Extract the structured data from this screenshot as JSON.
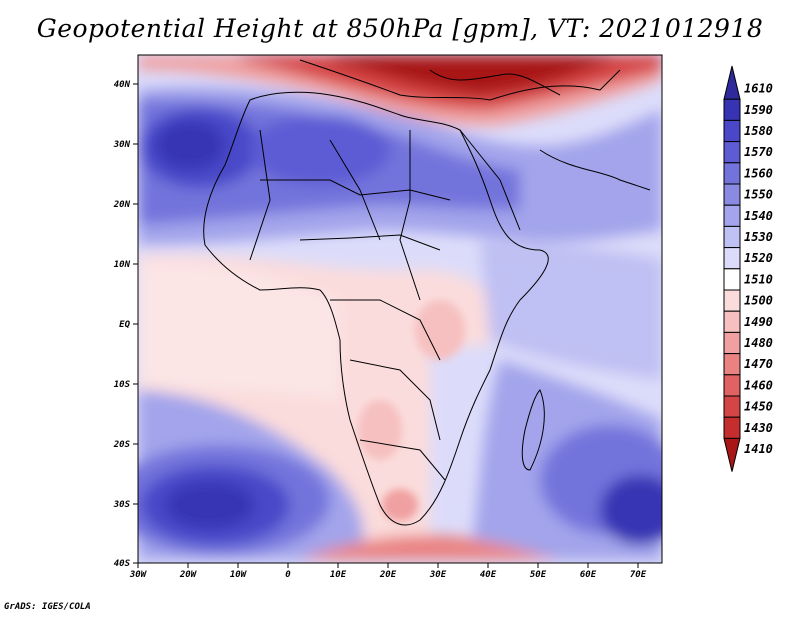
{
  "title": "Geopotential Height at 850hPa [gpm], VT: 2021012918",
  "footer": "GrADS: IGES/COLA",
  "map": {
    "lon_labels": [
      "30W",
      "20W",
      "10W",
      "0",
      "10E",
      "20E",
      "30E",
      "40E",
      "50E",
      "60E",
      "70E"
    ],
    "lat_labels": [
      "40N",
      "30N",
      "20N",
      "10N",
      "EQ",
      "10S",
      "20S",
      "30S",
      "40S"
    ]
  },
  "colorbar": {
    "labels": [
      "1610",
      "1590",
      "1580",
      "1570",
      "1560",
      "1550",
      "1540",
      "1530",
      "1520",
      "1510",
      "1500",
      "1490",
      "1480",
      "1470",
      "1460",
      "1450",
      "1430",
      "1410"
    ],
    "colors_top_to_bottom": [
      "#2e2a9c",
      "#3734b4",
      "#4a48c9",
      "#5d5cd4",
      "#7373dc",
      "#8a8ae3",
      "#a3a4eb",
      "#bfc0f3",
      "#dcdcfa",
      "#ffffff",
      "#fbdcdc",
      "#f6c0c0",
      "#f0a0a0",
      "#ea8282",
      "#e06262",
      "#d64545",
      "#c62e2e",
      "#a81616"
    ]
  }
}
